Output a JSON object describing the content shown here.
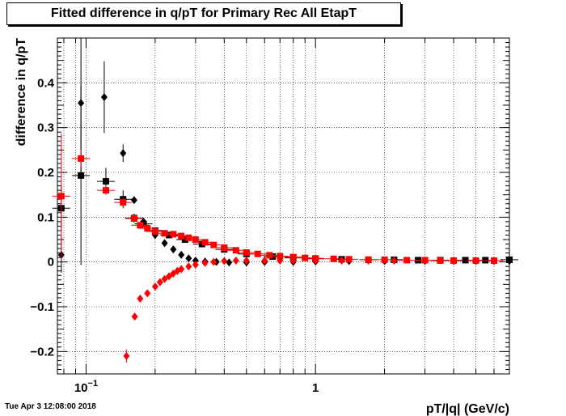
{
  "timestamp": "Tue Apr  3 12:08:00 2018",
  "chart_data": {
    "type": "scatter",
    "title": "Fitted difference in q/pT for Primary Rec All EtapT",
    "xlabel": "pT/|q| (GeV/c)",
    "ylabel": "difference in q/pT",
    "x_scale": "log",
    "xlim": [
      0.075,
      7.0
    ],
    "ylim": [
      -0.25,
      0.5
    ],
    "x_ticks": [
      {
        "value": 0.1,
        "label": "10",
        "sup": "−1"
      },
      {
        "value": 1,
        "label": "1",
        "sup": ""
      }
    ],
    "y_ticks": [
      {
        "value": -0.2,
        "label": "−0.2"
      },
      {
        "value": -0.1,
        "label": "−0.1"
      },
      {
        "value": 0,
        "label": "0"
      },
      {
        "value": 0.1,
        "label": "0.1"
      },
      {
        "value": 0.2,
        "label": "0.2"
      },
      {
        "value": 0.3,
        "label": "0.3"
      },
      {
        "value": 0.4,
        "label": "0.4"
      }
    ],
    "grid": true,
    "series": [
      {
        "color": "#000000",
        "marker": "diamond",
        "x": [
          0.078,
          0.095,
          0.12,
          0.145,
          0.162,
          0.178,
          0.2,
          0.22,
          0.24,
          0.26,
          0.28,
          0.3,
          0.33,
          0.37,
          0.42,
          0.5,
          0.6,
          0.8,
          1.0,
          1.4,
          2.0,
          3.0,
          4.0,
          5.0,
          6.0,
          7.0
        ],
        "y": [
          0.016,
          0.355,
          0.368,
          0.243,
          0.138,
          0.09,
          0.06,
          0.042,
          0.028,
          0.016,
          0.008,
          0.003,
          0.001,
          0.0,
          -0.001,
          -0.001,
          0.0,
          0.0,
          0.001,
          0.002,
          0.002,
          0.002,
          0.002,
          0.002,
          0.002,
          0.002
        ],
        "yerr": [
          0.04,
          0.16,
          0.08,
          0.02,
          0.005,
          0.005,
          0.003,
          0.003,
          0.002,
          0.002,
          0.002,
          0.002,
          0.002,
          0.002,
          0.002,
          0.002,
          0.002,
          0.002,
          0.002,
          0.002,
          0.002,
          0.002,
          0.002,
          0.002,
          0.002,
          0.002
        ]
      },
      {
        "color": "#000000",
        "marker": "square",
        "x": [
          0.078,
          0.095,
          0.122,
          0.145,
          0.162,
          0.178,
          0.2,
          0.23,
          0.27,
          0.32,
          0.4,
          0.5,
          0.65,
          0.8,
          1.0,
          1.3,
          1.7,
          2.2,
          2.8,
          3.5,
          4.5,
          5.5,
          7.0
        ],
        "y": [
          0.12,
          0.193,
          0.18,
          0.14,
          0.098,
          0.085,
          0.07,
          0.06,
          0.05,
          0.04,
          0.028,
          0.018,
          0.012,
          0.009,
          0.007,
          0.006,
          0.005,
          0.005,
          0.004,
          0.004,
          0.004,
          0.004,
          0.005
        ],
        "yerr": [
          0.05,
          0.2,
          0.03,
          0.02,
          0.01,
          0.005,
          0.004,
          0.003,
          0.002,
          0.002,
          0.002,
          0.002,
          0.002,
          0.002,
          0.002,
          0.002,
          0.002,
          0.002,
          0.002,
          0.002,
          0.002,
          0.002,
          0.002
        ]
      },
      {
        "color": "#ff0000",
        "marker": "square",
        "x": [
          0.078,
          0.095,
          0.122,
          0.145,
          0.162,
          0.172,
          0.185,
          0.2,
          0.22,
          0.24,
          0.26,
          0.28,
          0.3,
          0.33,
          0.36,
          0.4,
          0.45,
          0.5,
          0.56,
          0.63,
          0.7,
          0.8,
          0.9,
          1.0,
          1.2,
          1.4,
          1.7,
          2.0,
          2.5,
          3.0,
          3.5,
          4.0,
          5.0,
          6.0
        ],
        "y": [
          0.147,
          0.231,
          0.16,
          0.133,
          0.097,
          0.082,
          0.075,
          0.068,
          0.064,
          0.062,
          0.058,
          0.054,
          0.05,
          0.044,
          0.038,
          0.032,
          0.026,
          0.021,
          0.018,
          0.015,
          0.013,
          0.011,
          0.009,
          0.008,
          0.007,
          0.006,
          0.005,
          0.005,
          0.004,
          0.004,
          0.003,
          0.003,
          0.003,
          0.003
        ],
        "yerr": [
          0.14,
          0.02,
          0.01,
          0.01,
          0.005,
          0.004,
          0.003,
          0.003,
          0.002,
          0.002,
          0.002,
          0.002,
          0.002,
          0.002,
          0.002,
          0.002,
          0.002,
          0.002,
          0.002,
          0.002,
          0.002,
          0.002,
          0.002,
          0.002,
          0.002,
          0.002,
          0.002,
          0.002,
          0.002,
          0.002,
          0.002,
          0.002,
          0.002,
          0.002
        ]
      },
      {
        "color": "#ff0000",
        "marker": "diamond",
        "x": [
          0.15,
          0.163,
          0.172,
          0.185,
          0.2,
          0.21,
          0.22,
          0.23,
          0.24,
          0.25,
          0.26,
          0.28,
          0.3,
          0.33,
          0.36,
          0.4,
          0.45,
          0.5,
          0.6,
          0.7,
          0.8,
          1.0,
          1.3,
          1.7,
          2.2,
          3.0,
          4.0,
          5.0,
          6.0
        ],
        "y": [
          -0.21,
          -0.122,
          -0.082,
          -0.07,
          -0.055,
          -0.045,
          -0.038,
          -0.032,
          -0.026,
          -0.02,
          -0.016,
          -0.01,
          -0.006,
          -0.002,
          0.0,
          0.002,
          0.003,
          0.003,
          0.003,
          0.003,
          0.003,
          0.003,
          0.003,
          0.003,
          0.003,
          0.003,
          0.003,
          0.003,
          0.003
        ],
        "yerr": [
          0.015,
          0.005,
          0.004,
          0.003,
          0.003,
          0.002,
          0.002,
          0.002,
          0.002,
          0.002,
          0.002,
          0.002,
          0.002,
          0.002,
          0.002,
          0.002,
          0.002,
          0.002,
          0.002,
          0.002,
          0.002,
          0.002,
          0.002,
          0.002,
          0.002,
          0.002,
          0.002,
          0.002,
          0.002
        ]
      }
    ]
  }
}
